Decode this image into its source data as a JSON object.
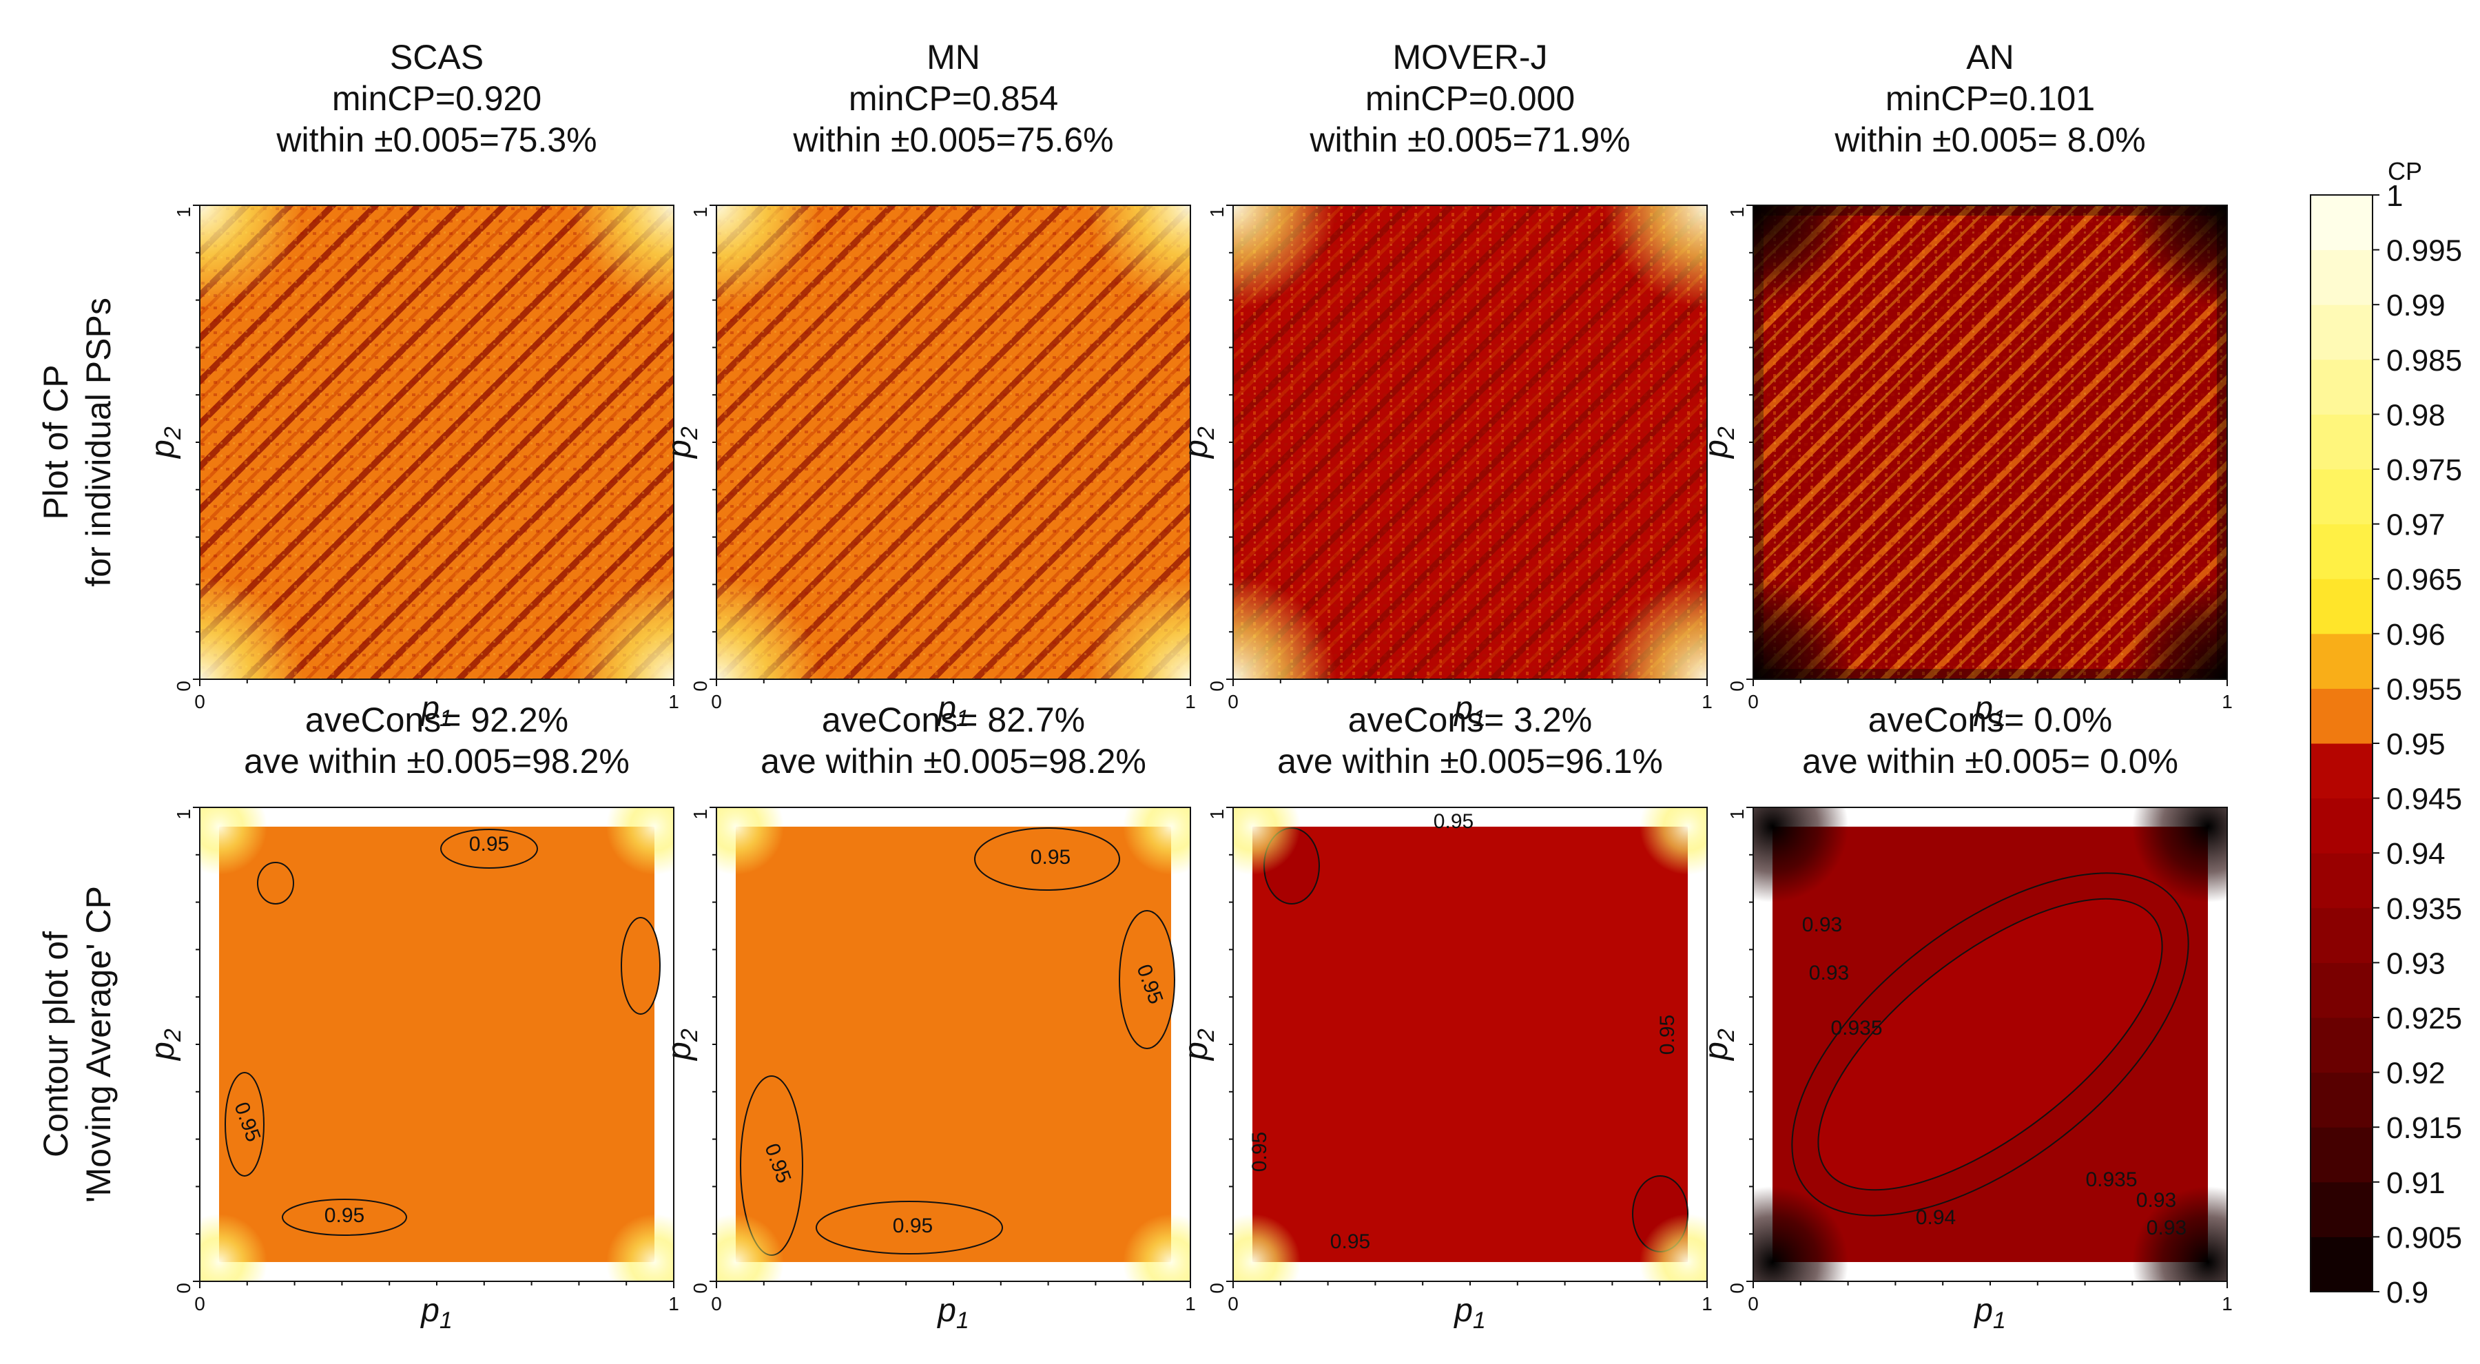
{
  "figure": {
    "row_labels": [
      [
        "Plot of CP",
        "for individual PSPs"
      ],
      [
        "Contour plot of",
        "'Moving Average' CP"
      ]
    ],
    "colorbar": {
      "title": "CP",
      "ticks": [
        "0.9",
        "0.905",
        "0.91",
        "0.915",
        "0.92",
        "0.925",
        "0.93",
        "0.935",
        "0.94",
        "0.945",
        "0.95",
        "0.955",
        "0.96",
        "0.965",
        "0.97",
        "0.975",
        "0.98",
        "0.985",
        "0.99",
        "0.995",
        "1"
      ],
      "colors": [
        "#110000",
        "#2b0000",
        "#440000",
        "#580000",
        "#6a0000",
        "#7a0000",
        "#8a0000",
        "#990000",
        "#a80000",
        "#b50500",
        "#f07a10",
        "#f9ae18",
        "#ffe52a",
        "#fff045",
        "#fff460",
        "#fff67c",
        "#fff898",
        "#fffab5",
        "#fffcd0",
        "#ffffe8"
      ]
    }
  },
  "chart_data": [
    {
      "type": "heatmap",
      "panel": "top",
      "method": "SCAS",
      "title_lines": [
        "SCAS",
        "minCP=0.920",
        "within ±0.005=75.3%"
      ],
      "xlabel": "p1",
      "ylabel": "p2",
      "x_ticks": [
        "0",
        "1"
      ],
      "y_ticks": [
        "0",
        "1"
      ],
      "xlim": [
        0,
        1
      ],
      "ylim": [
        0,
        1
      ],
      "min_cp": 0.92,
      "within_pct": 75.3,
      "base_cp": 0.951,
      "stripe_cp": 0.9425,
      "stripe_strength": 0.55,
      "corner_cp": 0.98
    },
    {
      "type": "heatmap",
      "panel": "top",
      "method": "MN",
      "title_lines": [
        "MN",
        "minCP=0.854",
        "within ±0.005=75.6%"
      ],
      "xlabel": "p1",
      "ylabel": "p2",
      "x_ticks": [
        "0",
        "1"
      ],
      "y_ticks": [
        "0",
        "1"
      ],
      "xlim": [
        0,
        1
      ],
      "ylim": [
        0,
        1
      ],
      "min_cp": 0.854,
      "within_pct": 75.6,
      "base_cp": 0.951,
      "stripe_cp": 0.9425,
      "stripe_strength": 0.5,
      "corner_cp": 0.975
    },
    {
      "type": "heatmap",
      "panel": "top",
      "method": "MOVER-J",
      "title_lines": [
        "MOVER-J",
        "minCP=0.000",
        "within ±0.005=71.9%"
      ],
      "xlabel": "p1",
      "ylabel": "p2",
      "x_ticks": [
        "0",
        "1"
      ],
      "y_ticks": [
        "0",
        "1"
      ],
      "xlim": [
        0,
        1
      ],
      "ylim": [
        0,
        1
      ],
      "min_cp": 0.0,
      "within_pct": 71.9,
      "base_cp": 0.947,
      "stripe_cp": 0.9425,
      "stripe_strength": 0.55,
      "corner_cp": 0.97
    },
    {
      "type": "heatmap",
      "panel": "top",
      "method": "AN",
      "title_lines": [
        "AN",
        "minCP=0.101",
        "within ±0.005= 8.0%"
      ],
      "xlabel": "p1",
      "ylabel": "p2",
      "x_ticks": [
        "0",
        "1"
      ],
      "y_ticks": [
        "0",
        "1"
      ],
      "xlim": [
        0,
        1
      ],
      "ylim": [
        0,
        1
      ],
      "min_cp": 0.101,
      "within_pct": 8.0,
      "base_cp": 0.938,
      "stripe_cp": 0.9475,
      "stripe_strength": 0.5,
      "corner_cp": 0.9
    },
    {
      "type": "contour",
      "panel": "bottom",
      "method": "SCAS",
      "title_lines": [
        "aveCons= 92.2%",
        "ave within ±0.005=98.2%"
      ],
      "xlabel": "p1",
      "ylabel": "p2",
      "x_ticks": [
        "0",
        "1"
      ],
      "y_ticks": [
        "0",
        "1"
      ],
      "xlim": [
        0,
        1
      ],
      "ylim": [
        0,
        1
      ],
      "ave_cons_pct": 92.2,
      "ave_within_pct": 98.2,
      "fill_cp": 0.951,
      "contour_labels": [
        "0.95",
        "0.95",
        "0.95"
      ]
    },
    {
      "type": "contour",
      "panel": "bottom",
      "method": "MN",
      "title_lines": [
        "aveCons= 82.7%",
        "ave within ±0.005=98.2%"
      ],
      "xlabel": "p1",
      "ylabel": "p2",
      "x_ticks": [
        "0",
        "1"
      ],
      "y_ticks": [
        "0",
        "1"
      ],
      "xlim": [
        0,
        1
      ],
      "ylim": [
        0,
        1
      ],
      "ave_cons_pct": 82.7,
      "ave_within_pct": 98.2,
      "fill_cp": 0.951,
      "contour_labels": [
        "0.95",
        "0.95",
        "0.95",
        "0.95"
      ]
    },
    {
      "type": "contour",
      "panel": "bottom",
      "method": "MOVER-J",
      "title_lines": [
        "aveCons=  3.2%",
        "ave within ±0.005=96.1%"
      ],
      "xlabel": "p1",
      "ylabel": "p2",
      "x_ticks": [
        "0",
        "1"
      ],
      "y_ticks": [
        "0",
        "1"
      ],
      "xlim": [
        0,
        1
      ],
      "ylim": [
        0,
        1
      ],
      "ave_cons_pct": 3.2,
      "ave_within_pct": 96.1,
      "fill_cp": 0.947,
      "contour_labels": [
        "0.95",
        "0.95",
        "0.95",
        "0.95"
      ]
    },
    {
      "type": "contour",
      "panel": "bottom",
      "method": "AN",
      "title_lines": [
        "aveCons=  0.0%",
        "ave within ±0.005= 0.0%"
      ],
      "xlabel": "p1",
      "ylabel": "p2",
      "x_ticks": [
        "0",
        "1"
      ],
      "y_ticks": [
        "0",
        "1"
      ],
      "xlim": [
        0,
        1
      ],
      "ylim": [
        0,
        1
      ],
      "ave_cons_pct": 0.0,
      "ave_within_pct": 0.0,
      "fill_cp": 0.938,
      "contour_labels": [
        "0.93",
        "0.93",
        "0.935",
        "0.94",
        "0.935",
        "0.93",
        "0.93"
      ]
    }
  ]
}
